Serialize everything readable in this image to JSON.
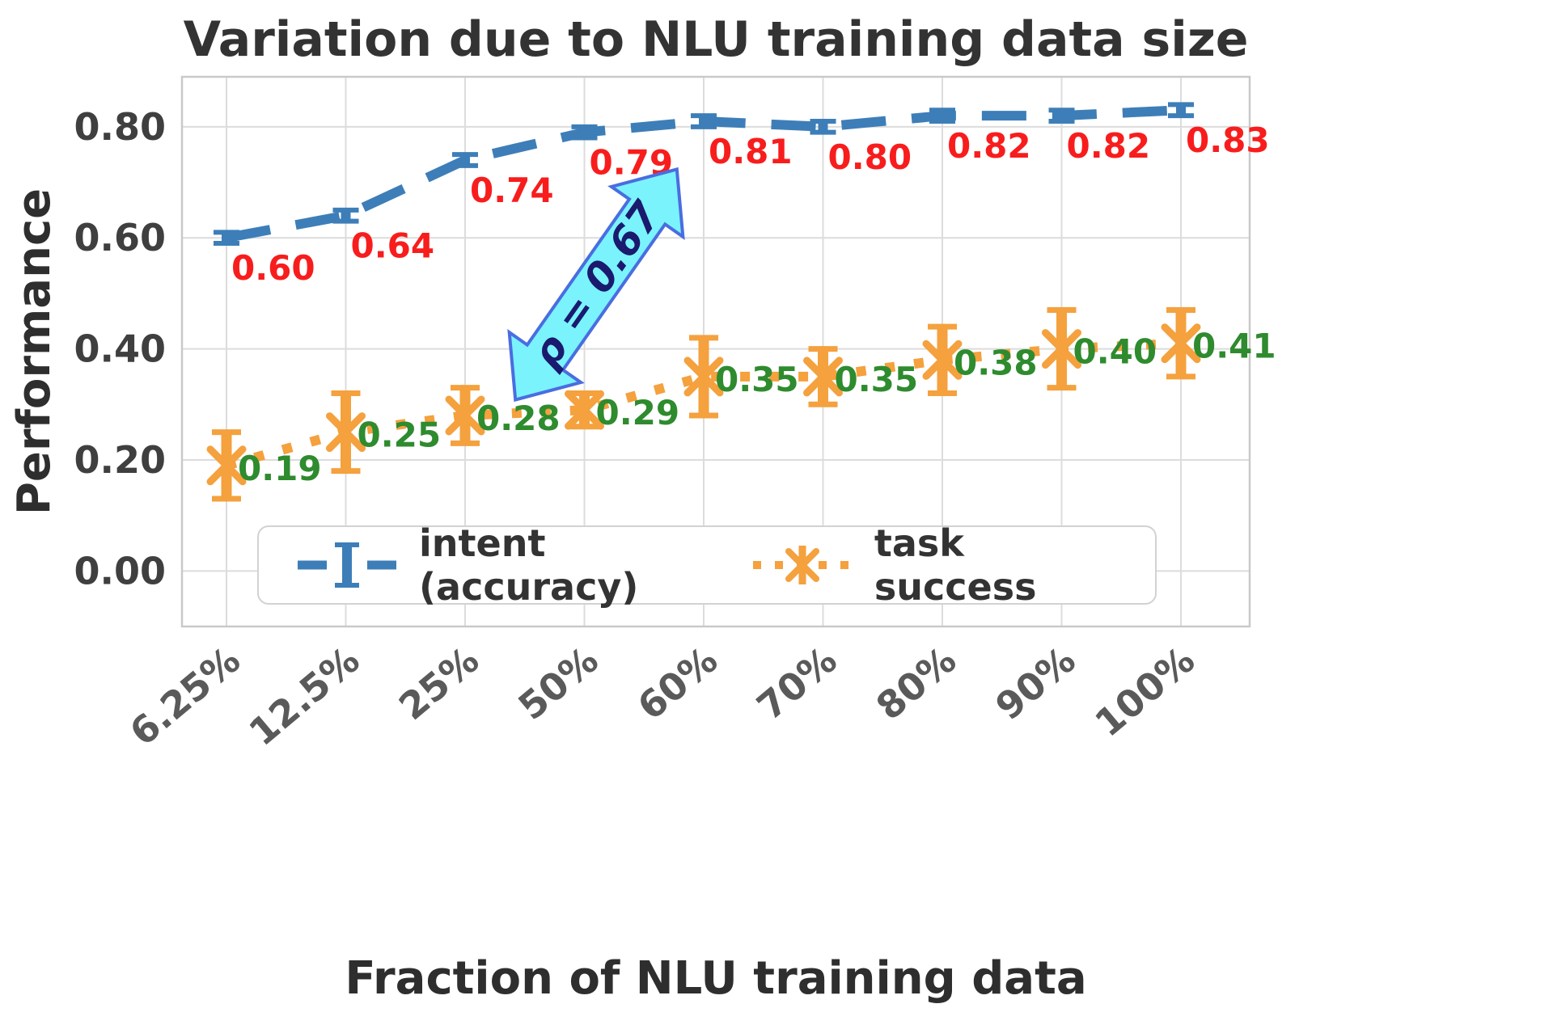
{
  "chart_data": {
    "type": "line",
    "title": "Variation due to NLU training data size",
    "xlabel": "Fraction of NLU training data",
    "ylabel": "Performance",
    "categories": [
      "6.25%",
      "12.5%",
      "25%",
      "50%",
      "60%",
      "70%",
      "80%",
      "90%",
      "100%"
    ],
    "yticks": [
      0.0,
      0.2,
      0.4,
      0.6,
      0.8
    ],
    "ylim": [
      -0.1,
      0.89
    ],
    "grid": true,
    "legend_position": "lower center",
    "series": [
      {
        "name": "intent (accuracy)",
        "style": "dashed",
        "color": "#3d7eb8",
        "label_color": "#f81d1d",
        "values": [
          0.6,
          0.64,
          0.74,
          0.79,
          0.81,
          0.8,
          0.82,
          0.82,
          0.83
        ],
        "errors": [
          0.01,
          0.01,
          0.01,
          0.01,
          0.01,
          0.01,
          0.01,
          0.01,
          0.01
        ]
      },
      {
        "name": "task success",
        "style": "dotted-with-star-marker-and-errorbars",
        "color": "#f4a13e",
        "label_color": "#2e8b2e",
        "values": [
          0.19,
          0.25,
          0.28,
          0.29,
          0.35,
          0.35,
          0.38,
          0.4,
          0.41
        ],
        "errors": [
          0.06,
          0.07,
          0.05,
          0.03,
          0.07,
          0.05,
          0.06,
          0.07,
          0.06
        ]
      }
    ],
    "annotation": {
      "text": "ρ = 0.67",
      "fill": "#7af3fd",
      "stroke": "#4a6de0",
      "text_color": "#1a1a6e"
    },
    "colors": {
      "grid": "#dcdcdc",
      "frame": "#c9c9c9",
      "y_tick_label": "#3f3f3f",
      "x_tick_label": "#5a5a5a",
      "background": "#ffffff"
    }
  }
}
